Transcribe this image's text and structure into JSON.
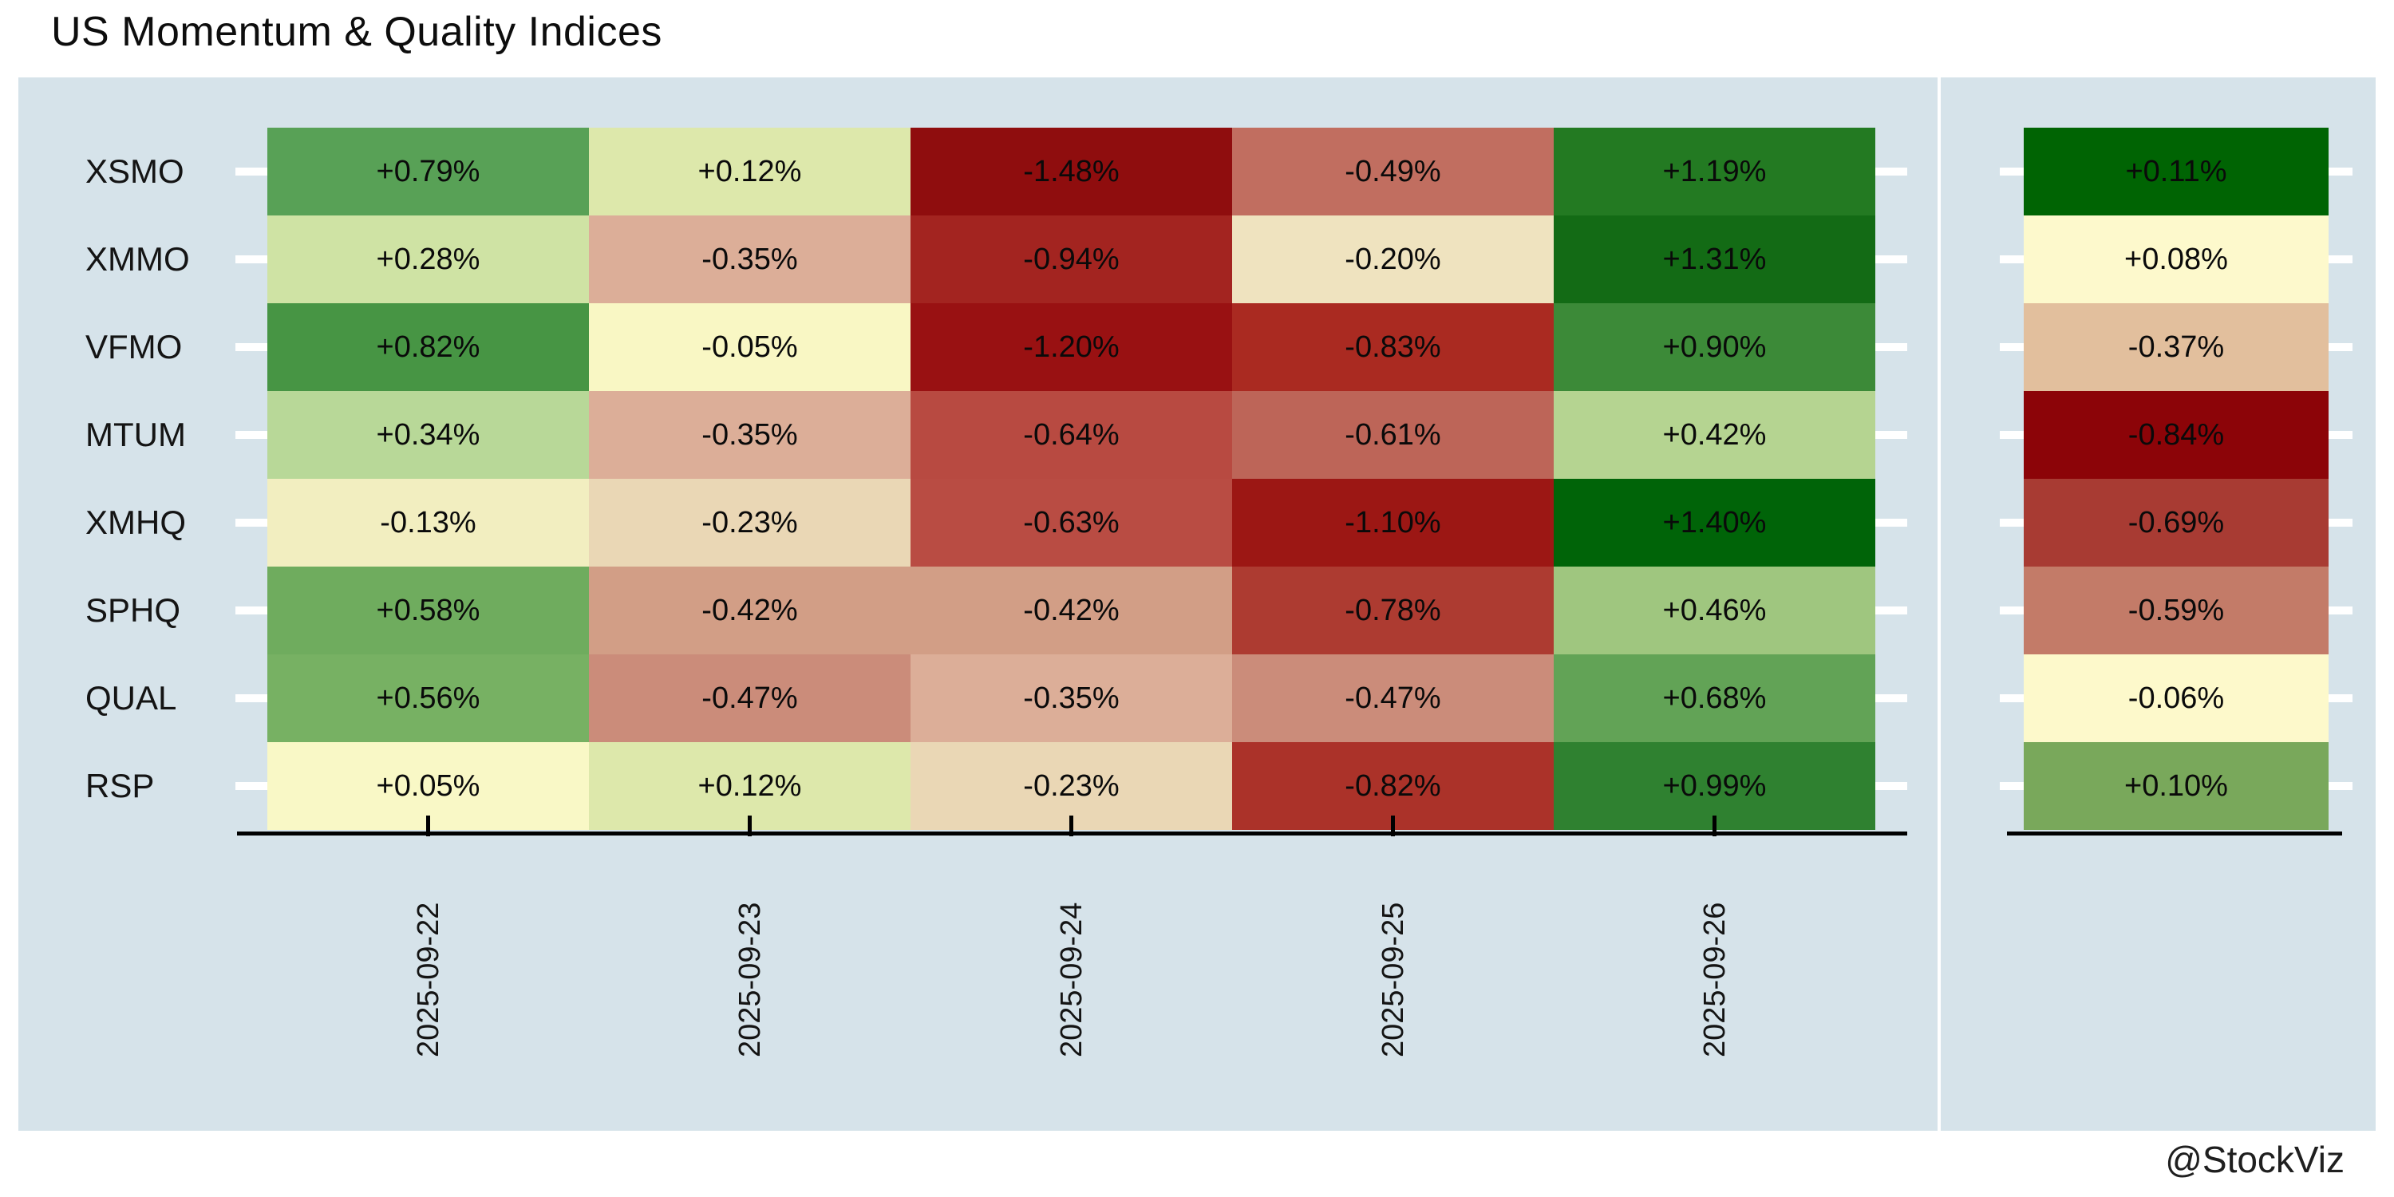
{
  "title": "US Momentum & Quality Indices",
  "watermark": "@StockViz",
  "colors": {
    "page_bg": "#ffffff",
    "chart_bg": "#d6e3ea",
    "axis": "#000000",
    "tick": "#ffffff",
    "cell_text": "#0a0a0a"
  },
  "chart_data": {
    "type": "heatmap",
    "title": "US Momentum & Quality Indices",
    "rows": [
      "XSMO",
      "XMMO",
      "VFMO",
      "MTUM",
      "XMHQ",
      "SPHQ",
      "QUAL",
      "RSP"
    ],
    "columns": [
      "2025-09-22",
      "2025-09-23",
      "2025-09-24",
      "2025-09-25",
      "2025-09-26"
    ],
    "values": [
      [
        0.79,
        0.12,
        -1.48,
        -0.49,
        1.19
      ],
      [
        0.28,
        -0.35,
        -0.94,
        -0.2,
        1.31
      ],
      [
        0.82,
        -0.05,
        -1.2,
        -0.83,
        0.9
      ],
      [
        0.34,
        -0.35,
        -0.64,
        -0.61,
        0.42
      ],
      [
        -0.13,
        -0.23,
        -0.63,
        -1.1,
        1.4
      ],
      [
        0.58,
        -0.42,
        -0.42,
        -0.78,
        0.46
      ],
      [
        0.56,
        -0.47,
        -0.35,
        -0.47,
        0.68
      ],
      [
        0.05,
        0.12,
        -0.23,
        -0.82,
        0.99
      ]
    ],
    "labels": [
      [
        "+0.79%",
        "+0.12%",
        "-1.48%",
        "-0.49%",
        "+1.19%"
      ],
      [
        "+0.28%",
        "-0.35%",
        "-0.94%",
        "-0.20%",
        "+1.31%"
      ],
      [
        "+0.82%",
        "-0.05%",
        "-1.20%",
        "-0.83%",
        "+0.90%"
      ],
      [
        "+0.34%",
        "-0.35%",
        "-0.64%",
        "-0.61%",
        "+0.42%"
      ],
      [
        "-0.13%",
        "-0.23%",
        "-0.63%",
        "-1.10%",
        "+1.40%"
      ],
      [
        "+0.58%",
        "-0.42%",
        "-0.42%",
        "-0.78%",
        "+0.46%"
      ],
      [
        "+0.56%",
        "-0.47%",
        "-0.35%",
        "-0.47%",
        "+0.68%"
      ],
      [
        "+0.05%",
        "+0.12%",
        "-0.23%",
        "-0.82%",
        "+0.99%"
      ]
    ],
    "cell_colors": [
      [
        "#58a156",
        "#dde8ab",
        "#8f0d0e",
        "#c16e60",
        "#237a22"
      ],
      [
        "#cfe3a4",
        "#dcae98",
        "#a32420",
        "#efe3bf",
        "#136b15"
      ],
      [
        "#479544",
        "#f9f7c4",
        "#991112",
        "#aa2a21",
        "#3c8a38"
      ],
      [
        "#b8d898",
        "#dcae98",
        "#b84a41",
        "#bd6558",
        "#b5d491"
      ],
      [
        "#f2eec0",
        "#ead7b5",
        "#b94c43",
        "#9c1714",
        "#006408"
      ],
      [
        "#6fac5e",
        "#d29e86",
        "#d29e86",
        "#ad3b31",
        "#9fc67f"
      ],
      [
        "#77b163",
        "#cb8c7a",
        "#dcae98",
        "#cb8c7a",
        "#62a356"
      ],
      [
        "#f9f8c6",
        "#dde8ab",
        "#ead7b5",
        "#ab3229",
        "#2f8130"
      ]
    ],
    "summary_column": {
      "values": [
        0.11,
        0.08,
        -0.37,
        -0.84,
        -0.69,
        -0.59,
        -0.06,
        0.1
      ],
      "labels": [
        "+0.11%",
        "+0.08%",
        "-0.37%",
        "-0.84%",
        "-0.69%",
        "-0.59%",
        "-0.06%",
        "+0.10%"
      ],
      "colors": [
        "#006403",
        "#fdf9cc",
        "#e2bf9d",
        "#8c0408",
        "#a83b33",
        "#c37b68",
        "#fdf9cb",
        "#79a85b"
      ]
    },
    "layout_hints": {
      "colormap": "red-yellow-green diverging",
      "grid": false,
      "x_tick_rotation_deg": 90,
      "legend": "none"
    }
  }
}
